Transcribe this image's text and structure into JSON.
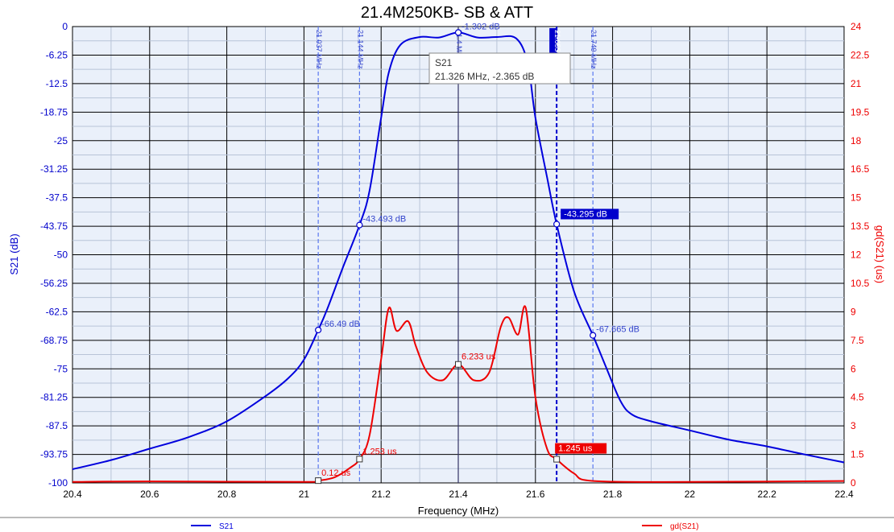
{
  "chart_data": {
    "type": "line",
    "title": "21.4M250KB- SB & ATT",
    "xlabel": "Frequency (MHz)",
    "ylabel_left": "S21 (dB)",
    "ylabel_right": "gd(S21) (us)",
    "xlim": [
      20.4,
      22.4
    ],
    "ylim_left": [
      -100,
      0
    ],
    "ylim_right": [
      0,
      24
    ],
    "grid": true,
    "x_tick_labels": [
      "20.4",
      "20.6",
      "20.8",
      "21",
      "21.2",
      "21.4",
      "21.6",
      "21.8",
      "22",
      "22.2",
      "22.4"
    ],
    "y_left_tick_labels": [
      "0",
      "-6.25",
      "-12.5",
      "-18.75",
      "-25",
      "-31.25",
      "-37.5",
      "-43.75",
      "-50",
      "-56.25",
      "-62.5",
      "-68.75",
      "-75",
      "-81.25",
      "-87.5",
      "-93.75",
      "-100"
    ],
    "y_right_tick_labels": [
      "24",
      "22.5",
      "21",
      "19.5",
      "18",
      "16.5",
      "15",
      "13.5",
      "12",
      "10.5",
      "9",
      "7.5",
      "6",
      "4.5",
      "3",
      "1.5",
      "0"
    ],
    "series": [
      {
        "name": "S21",
        "axis": "left",
        "color": "#0000dd",
        "x": [
          20.4,
          20.5,
          20.6,
          20.7,
          20.8,
          20.9,
          20.96,
          21.0,
          21.037,
          21.06,
          21.1,
          21.144,
          21.17,
          21.2,
          21.22,
          21.25,
          21.3,
          21.35,
          21.4,
          21.45,
          21.5,
          21.55,
          21.58,
          21.6,
          21.63,
          21.655,
          21.7,
          21.749,
          21.78,
          21.82,
          21.85,
          21.9,
          22.0,
          22.1,
          22.2,
          22.3,
          22.4
        ],
        "values": [
          -97,
          -95,
          -92.5,
          -90,
          -86.5,
          -81,
          -77,
          -73,
          -66.49,
          -62,
          -53,
          -43.493,
          -36,
          -20,
          -10,
          -4,
          -2.3,
          -2.4,
          -1.302,
          -2.4,
          -2.3,
          -2.6,
          -8,
          -20,
          -33,
          -43.295,
          -58,
          -67.665,
          -74,
          -82,
          -85,
          -86.5,
          -88.5,
          -90.5,
          -92,
          -93.8,
          -95.5
        ]
      },
      {
        "name": "gd(S21)",
        "axis": "right",
        "color": "#ee0000",
        "x": [
          20.4,
          20.6,
          21.0,
          21.037,
          21.08,
          21.12,
          21.144,
          21.17,
          21.2,
          21.22,
          21.24,
          21.27,
          21.29,
          21.32,
          21.36,
          21.4,
          21.44,
          21.48,
          21.51,
          21.53,
          21.555,
          21.575,
          21.6,
          21.63,
          21.655,
          21.7,
          21.75,
          22.0,
          22.4
        ],
        "values": [
          0.05,
          0.08,
          0.05,
          0.12,
          0.3,
          0.8,
          1.253,
          2.5,
          6.5,
          9.2,
          8.0,
          8.5,
          7.2,
          5.8,
          5.4,
          6.233,
          5.4,
          5.8,
          8.2,
          8.7,
          7.8,
          9.2,
          4.5,
          1.8,
          1.245,
          0.5,
          0.1,
          0.05,
          0.1
        ]
      }
    ],
    "markers": [
      {
        "freq": "21.037 MHz",
        "x": 21.037,
        "series": "S21",
        "y": -66.49,
        "value": "-66.49 dB",
        "active": false
      },
      {
        "freq": "21.144 MHz",
        "x": 21.144,
        "series": "S21",
        "y": -43.493,
        "value": "-43.493 dB",
        "active": false
      },
      {
        "freq": "21.4 MHz",
        "x": 21.4,
        "series": "S21",
        "y": -1.302,
        "value": "-1.302 dB",
        "active": false
      },
      {
        "freq": "21.655 MHz",
        "x": 21.655,
        "series": "S21",
        "y": -43.295,
        "value": "-43.295 dB",
        "active": true
      },
      {
        "freq": "21.749 MHz",
        "x": 21.749,
        "series": "S21",
        "y": -67.665,
        "value": "-67.665 dB",
        "active": false
      }
    ],
    "gd_markers": [
      {
        "x": 21.037,
        "y": 0.12,
        "value": "0.12 us",
        "active": false
      },
      {
        "x": 21.144,
        "y": 1.253,
        "value": "1.253 us",
        "active": false
      },
      {
        "x": 21.4,
        "y": 6.233,
        "value": "6.233 us",
        "active": false
      },
      {
        "x": 21.655,
        "y": 1.245,
        "value": "1.245 us",
        "active": true
      }
    ],
    "tooltip": {
      "line1": "S21",
      "line2": "21.326 MHz, -2.365 dB"
    },
    "legend": [
      {
        "label": "S21",
        "color": "#0000dd"
      },
      {
        "label": "gd(S21)",
        "color": "#ee0000"
      }
    ]
  }
}
